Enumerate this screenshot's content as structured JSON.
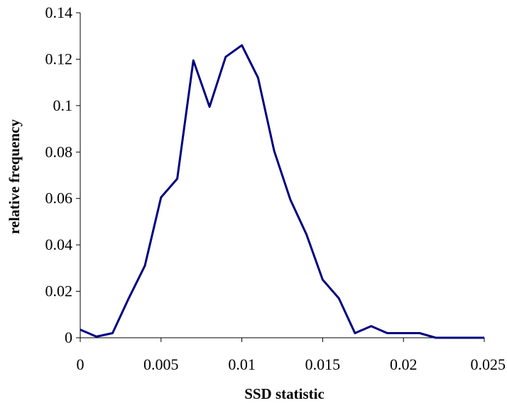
{
  "chart_data": {
    "type": "line",
    "title": "",
    "xlabel": "SSD statistic",
    "ylabel": "relative frequency",
    "xlim": [
      0,
      0.025
    ],
    "ylim": [
      0,
      0.14
    ],
    "x_ticks": [
      "0",
      "0.005",
      "0.01",
      "0.015",
      "0.02",
      "0.025"
    ],
    "y_ticks": [
      "0",
      "0.02",
      "0.04",
      "0.06",
      "0.08",
      "0.1",
      "0.12",
      "0.14"
    ],
    "grid": false,
    "legend": "none",
    "line_color": "#000080",
    "series": [
      {
        "x": [
          0,
          0.001,
          0.002,
          0.003,
          0.004,
          0.005,
          0.006,
          0.007,
          0.008,
          0.009,
          0.01,
          0.011,
          0.012,
          0.013,
          0.014,
          0.015,
          0.016,
          0.017,
          0.018,
          0.019,
          0.02,
          0.021,
          0.022,
          0.023,
          0.024,
          0.025
        ],
        "values": [
          0.0035,
          0.0005,
          0.002,
          0.017,
          0.031,
          0.0605,
          0.0685,
          0.1195,
          0.0995,
          0.121,
          0.126,
          0.112,
          0.0805,
          0.0595,
          0.0445,
          0.025,
          0.017,
          0.002,
          0.005,
          0.002,
          0.002,
          0.002,
          0,
          0,
          0,
          0
        ]
      }
    ]
  }
}
